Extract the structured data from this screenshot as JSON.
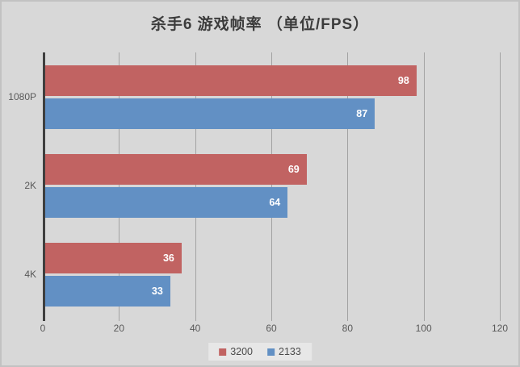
{
  "title": "杀手6 游戏帧率 （单位/FPS）",
  "chart_data": {
    "type": "bar",
    "orientation": "horizontal",
    "title": "杀手6 游戏帧率 （单位/FPS）",
    "categories": [
      "1080P",
      "2K",
      "4K"
    ],
    "series": [
      {
        "name": "3200",
        "color": "#c16362",
        "values": [
          98,
          69,
          36
        ]
      },
      {
        "name": "2133",
        "color": "#6290c4",
        "values": [
          87,
          64,
          33
        ]
      }
    ],
    "xlabel": "",
    "ylabel": "",
    "xlim": [
      0,
      120
    ],
    "x_ticks": [
      0,
      20,
      40,
      60,
      80,
      100,
      120
    ],
    "grid": "vertical",
    "legend_position": "bottom",
    "data_labels": "inside-end",
    "colors": {
      "background": "#d8d8d8",
      "border": "#c2c2c2",
      "gridline": "#a3a3a3",
      "axis_line": "#3f3f3f",
      "tick_text": "#595959",
      "title_text": "#3c3c3c",
      "bar_label_text": "#ffffff",
      "legend_background": "#e7e7e7"
    }
  }
}
